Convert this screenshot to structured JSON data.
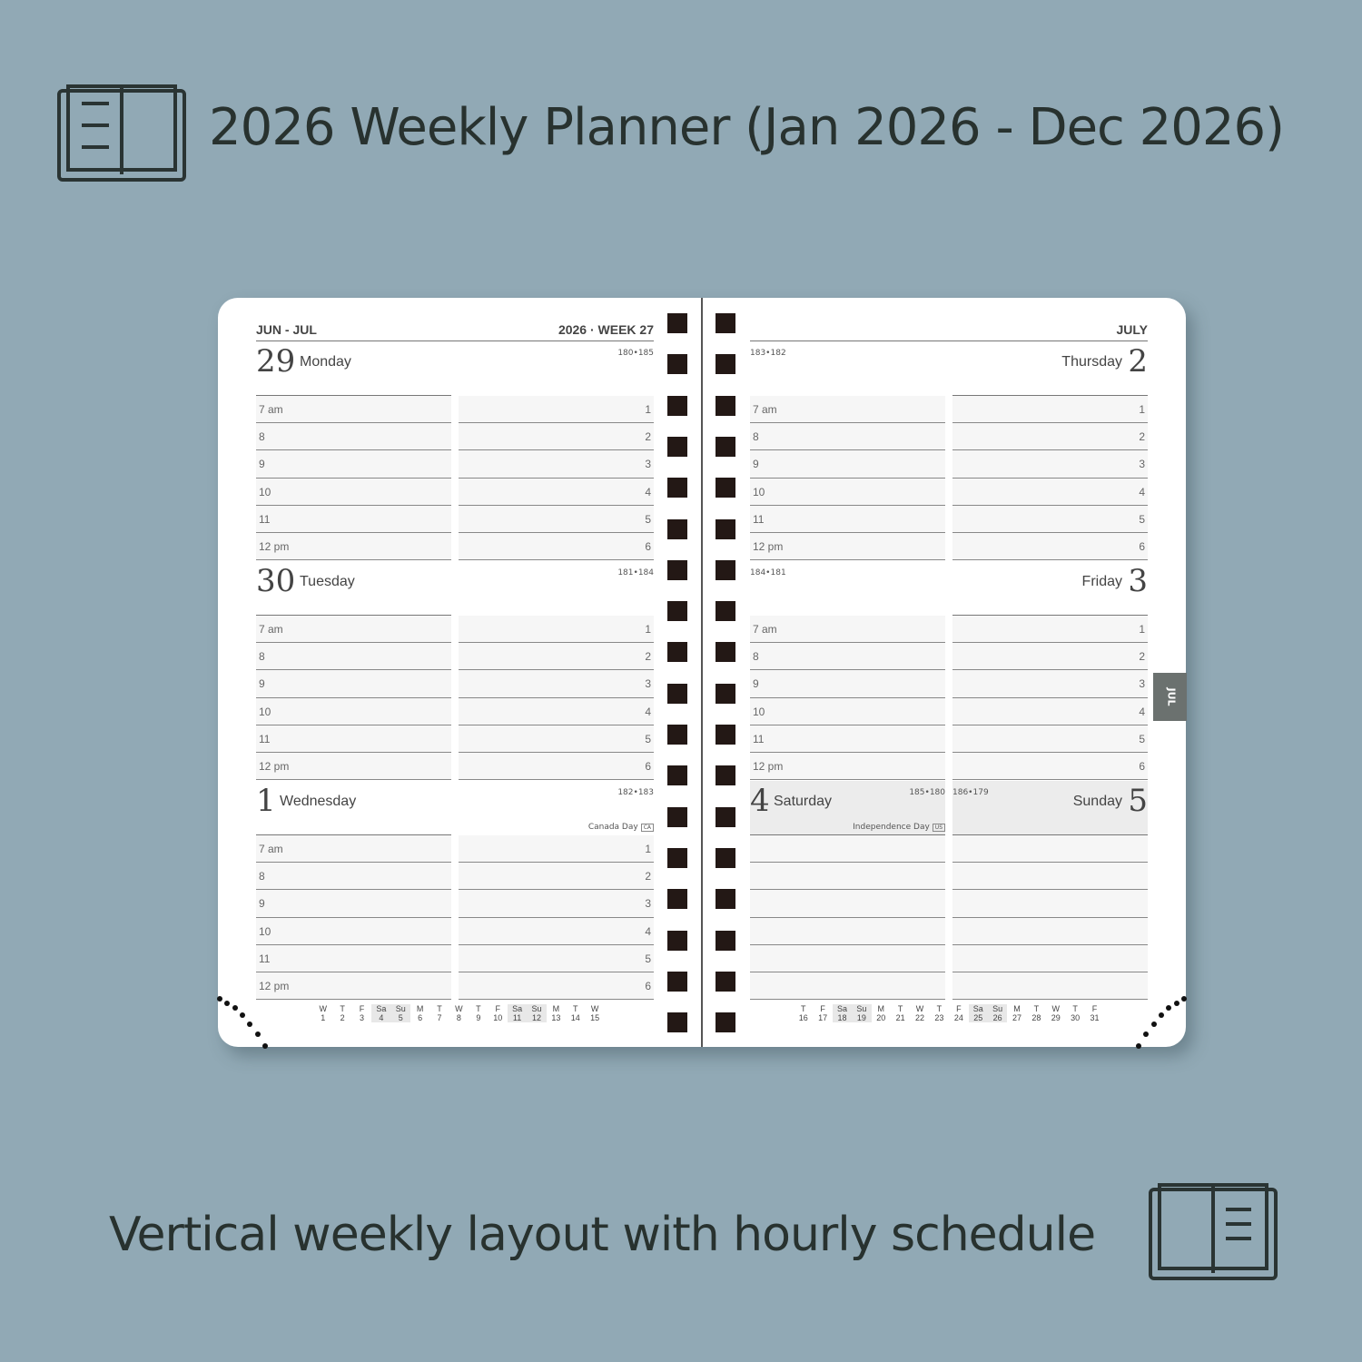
{
  "header": {
    "title": "2026 Weekly Planner (Jan 2026 - Dec 2026)",
    "icon": "open-book-icon"
  },
  "footer": {
    "subtitle": "Vertical weekly layout with hourly schedule",
    "icon": "open-book-icon"
  },
  "planner": {
    "left": {
      "range": "JUN - JUL",
      "week": "2026 · WEEK 27",
      "days": [
        {
          "num": "29",
          "name": "Monday",
          "count": "180•185",
          "holiday": ""
        },
        {
          "num": "30",
          "name": "Tuesday",
          "count": "181•184",
          "holiday": ""
        },
        {
          "num": "1",
          "name": "Wednesday",
          "count": "182•183",
          "holiday": "Canada Day",
          "badge": "CA"
        }
      ],
      "mini": [
        [
          "W",
          "1"
        ],
        [
          "T",
          "2"
        ],
        [
          "F",
          "3"
        ],
        [
          "Sa",
          "4"
        ],
        [
          "Su",
          "5"
        ],
        [
          "M",
          "6"
        ],
        [
          "T",
          "7"
        ],
        [
          "W",
          "8"
        ],
        [
          "T",
          "9"
        ],
        [
          "F",
          "10"
        ],
        [
          "Sa",
          "11"
        ],
        [
          "Su",
          "12"
        ],
        [
          "M",
          "13"
        ],
        [
          "T",
          "14"
        ],
        [
          "W",
          "15"
        ]
      ]
    },
    "right": {
      "month": "JULY",
      "days": [
        {
          "num": "2",
          "name": "Thursday",
          "count": "183•182"
        },
        {
          "num": "3",
          "name": "Friday",
          "count": "184•181"
        }
      ],
      "weekend": [
        {
          "num": "4",
          "name": "Saturday",
          "count": "185•180",
          "holiday": "Independence Day",
          "badge": "US"
        },
        {
          "num": "5",
          "name": "Sunday",
          "count": "186•179"
        }
      ],
      "mini": [
        [
          "T",
          "16"
        ],
        [
          "F",
          "17"
        ],
        [
          "Sa",
          "18"
        ],
        [
          "Su",
          "19"
        ],
        [
          "M",
          "20"
        ],
        [
          "T",
          "21"
        ],
        [
          "W",
          "22"
        ],
        [
          "T",
          "23"
        ],
        [
          "F",
          "24"
        ],
        [
          "Sa",
          "25"
        ],
        [
          "Su",
          "26"
        ],
        [
          "M",
          "27"
        ],
        [
          "T",
          "28"
        ],
        [
          "W",
          "29"
        ],
        [
          "T",
          "30"
        ],
        [
          "F",
          "31"
        ]
      ]
    },
    "hours_am": [
      "7 am",
      "8",
      "9",
      "10",
      "11",
      "12 pm"
    ],
    "hours_pm": [
      "1",
      "2",
      "3",
      "4",
      "5",
      "6"
    ],
    "tab": "JUL"
  }
}
